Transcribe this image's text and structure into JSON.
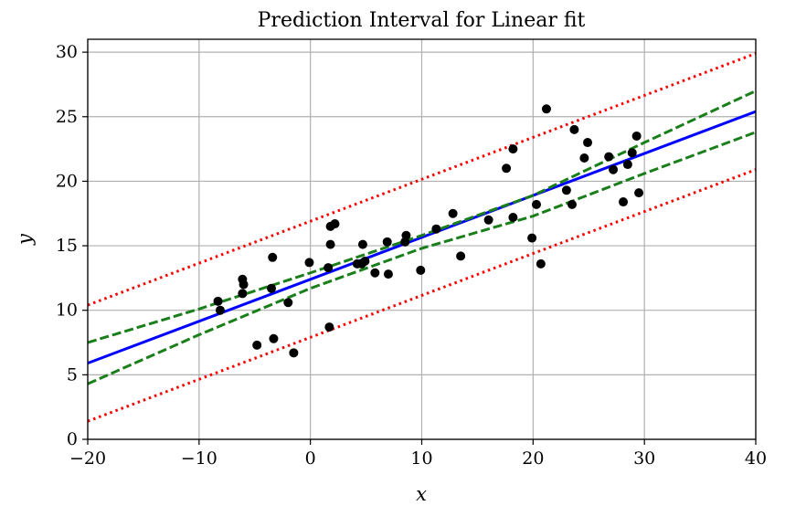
{
  "chart_data": {
    "type": "scatter",
    "title": "Prediction Interval for Linear fit",
    "xlabel": "x",
    "ylabel": "y",
    "xlim": [
      -20,
      40
    ],
    "ylim": [
      0,
      31
    ],
    "grid": true,
    "x_ticks": [
      {
        "value": -20,
        "label": "−20"
      },
      {
        "value": -10,
        "label": "−10"
      },
      {
        "value": 0,
        "label": "0"
      },
      {
        "value": 10,
        "label": "10"
      },
      {
        "value": 20,
        "label": "20"
      },
      {
        "value": 30,
        "label": "30"
      },
      {
        "value": 40,
        "label": "40"
      }
    ],
    "y_ticks": [
      {
        "value": 0,
        "label": "0"
      },
      {
        "value": 5,
        "label": "5"
      },
      {
        "value": 10,
        "label": "10"
      },
      {
        "value": 15,
        "label": "15"
      },
      {
        "value": 20,
        "label": "20"
      },
      {
        "value": 25,
        "label": "25"
      },
      {
        "value": 30,
        "label": "30"
      }
    ],
    "series": [
      {
        "type": "scatter",
        "color": "#000000",
        "points": [
          [
            -8.3,
            10.7
          ],
          [
            -8.1,
            10.0
          ],
          [
            -6.1,
            12.4
          ],
          [
            -6.0,
            12.0
          ],
          [
            -6.1,
            11.3
          ],
          [
            -3.5,
            11.7
          ],
          [
            -3.4,
            14.1
          ],
          [
            -3.3,
            7.8
          ],
          [
            -4.8,
            7.3
          ],
          [
            -2.0,
            10.6
          ],
          [
            -1.5,
            6.7
          ],
          [
            -0.1,
            13.7
          ],
          [
            1.6,
            13.3
          ],
          [
            1.7,
            8.7
          ],
          [
            1.8,
            15.1
          ],
          [
            1.8,
            16.5
          ],
          [
            2.2,
            16.7
          ],
          [
            4.2,
            13.6
          ],
          [
            4.6,
            13.6
          ],
          [
            4.9,
            13.8
          ],
          [
            4.7,
            15.1
          ],
          [
            5.8,
            12.9
          ],
          [
            6.9,
            15.3
          ],
          [
            7.0,
            12.8
          ],
          [
            8.5,
            15.3
          ],
          [
            8.6,
            15.8
          ],
          [
            9.9,
            13.1
          ],
          [
            11.3,
            16.3
          ],
          [
            12.8,
            17.5
          ],
          [
            13.5,
            14.2
          ],
          [
            16.0,
            17.0
          ],
          [
            17.6,
            21.0
          ],
          [
            18.2,
            22.5
          ],
          [
            18.2,
            17.2
          ],
          [
            19.9,
            15.6
          ],
          [
            20.3,
            18.2
          ],
          [
            20.7,
            13.6
          ],
          [
            21.2,
            25.6
          ],
          [
            23.0,
            19.3
          ],
          [
            23.5,
            18.2
          ],
          [
            23.7,
            24.0
          ],
          [
            24.6,
            21.8
          ],
          [
            24.9,
            23.0
          ],
          [
            26.8,
            21.9
          ],
          [
            27.2,
            20.9
          ],
          [
            28.1,
            18.4
          ],
          [
            28.5,
            21.3
          ],
          [
            28.9,
            22.2
          ],
          [
            29.3,
            23.5
          ],
          [
            29.5,
            19.1
          ]
        ]
      },
      {
        "type": "line",
        "style": "solid",
        "color": "#0000ff",
        "x": [
          -20,
          40
        ],
        "y": [
          5.9,
          25.4
        ]
      },
      {
        "type": "line",
        "style": "dashed",
        "color": "#1a7f1a",
        "x": [
          -20,
          -10,
          0,
          10,
          20,
          30,
          40
        ],
        "y": [
          7.5,
          10.1,
          12.9,
          15.8,
          18.9,
          23.0,
          27.0
        ]
      },
      {
        "type": "line",
        "style": "dashed",
        "color": "#1a7f1a",
        "x": [
          -20,
          -10,
          0,
          10,
          20,
          30,
          40
        ],
        "y": [
          4.3,
          8.1,
          11.7,
          14.8,
          17.3,
          20.6,
          23.8
        ]
      },
      {
        "type": "line",
        "style": "dotted",
        "color": "#ff0000",
        "x": [
          -20,
          40
        ],
        "y": [
          10.4,
          29.9
        ]
      },
      {
        "type": "line",
        "style": "dotted",
        "color": "#ff0000",
        "x": [
          -20,
          40
        ],
        "y": [
          1.4,
          20.9
        ]
      }
    ]
  }
}
